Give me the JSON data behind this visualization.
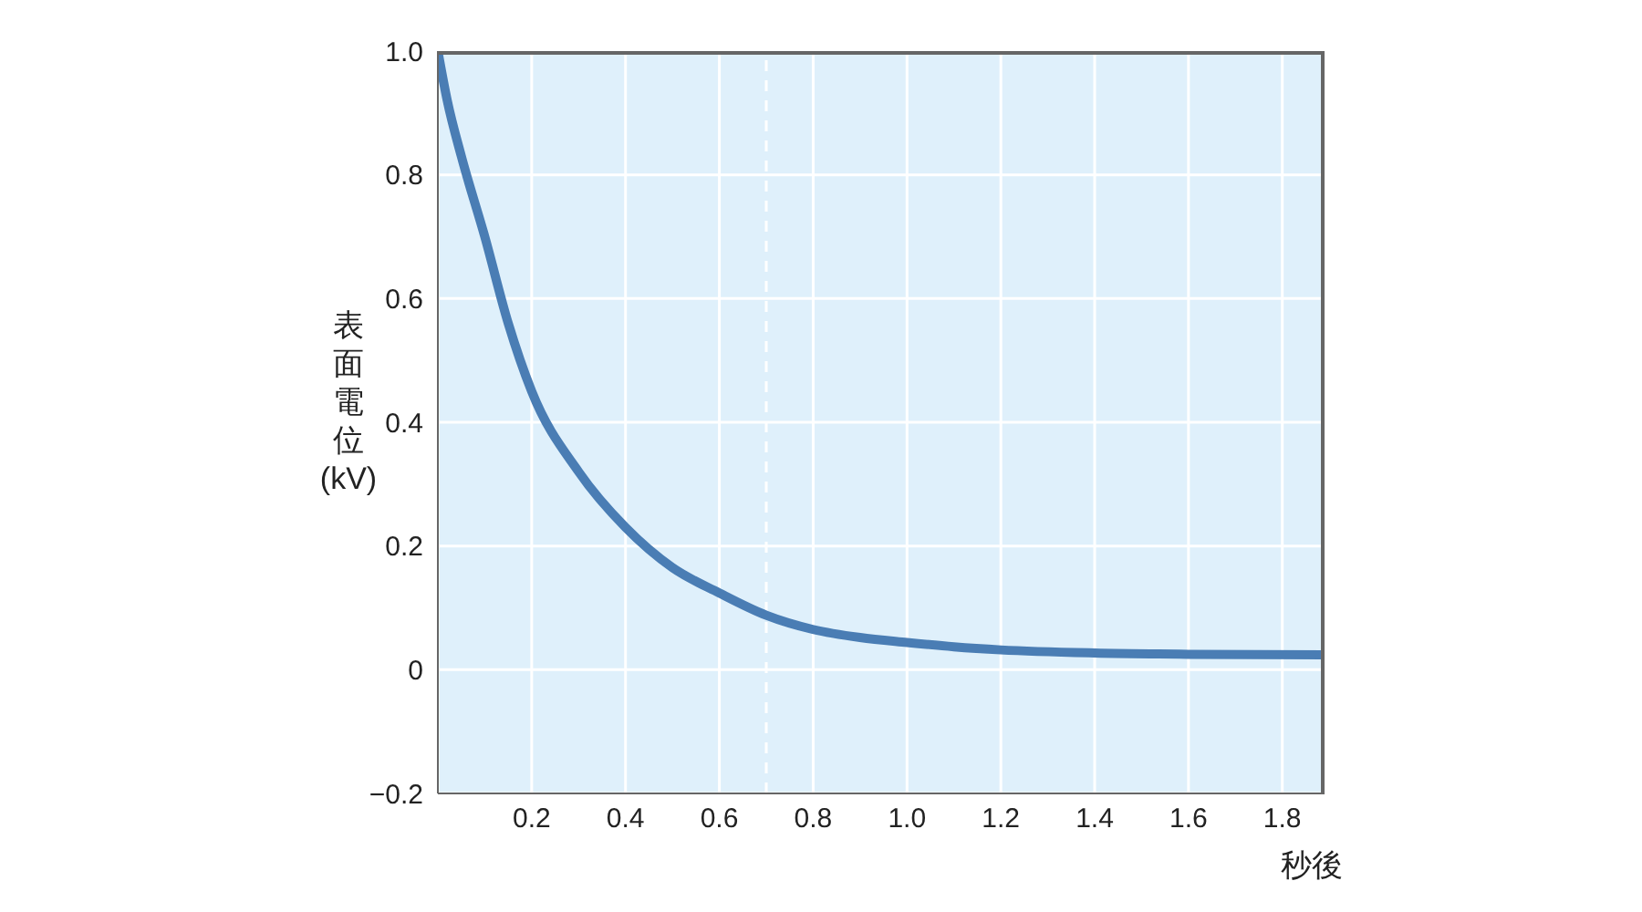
{
  "chart_data": {
    "type": "line",
    "xlabel": "秒後",
    "ylabel": "表面電位(kV)",
    "x": [
      0,
      0.02,
      0.05,
      0.1,
      0.15,
      0.2,
      0.3,
      0.4,
      0.5,
      0.6,
      0.7,
      0.8,
      0.9,
      1.0,
      1.1,
      1.2,
      1.4,
      1.6,
      1.89
    ],
    "series": [
      {
        "color": "#4a7db4",
        "values": [
          1.0,
          0.92,
          0.83,
          0.7,
          0.56,
          0.45,
          0.32,
          0.23,
          0.165,
          0.124,
          0.088,
          0.065,
          0.052,
          0.044,
          0.037,
          0.032,
          0.027,
          0.025,
          0.024
        ]
      }
    ],
    "xlim": [
      0,
      1.89
    ],
    "xticks": [
      0.2,
      0.4,
      0.6,
      0.8,
      {
        "value": 1,
        "label": "1.0"
      },
      1.2,
      1.4,
      1.6,
      1.8
    ],
    "ylim": [
      -0.2,
      1.0
    ],
    "yticks": [
      {
        "value": -0.2,
        "label": "−0.2"
      },
      0,
      0.2,
      0.4,
      0.6,
      0.8,
      {
        "value": 1,
        "label": "1.0"
      }
    ],
    "ref_lines": [
      {
        "axis": "x",
        "value": 0.7,
        "color": "#ffffff",
        "line_style": "dashed"
      }
    ],
    "grid": true,
    "marker": "none",
    "line_style": "solid"
  }
}
